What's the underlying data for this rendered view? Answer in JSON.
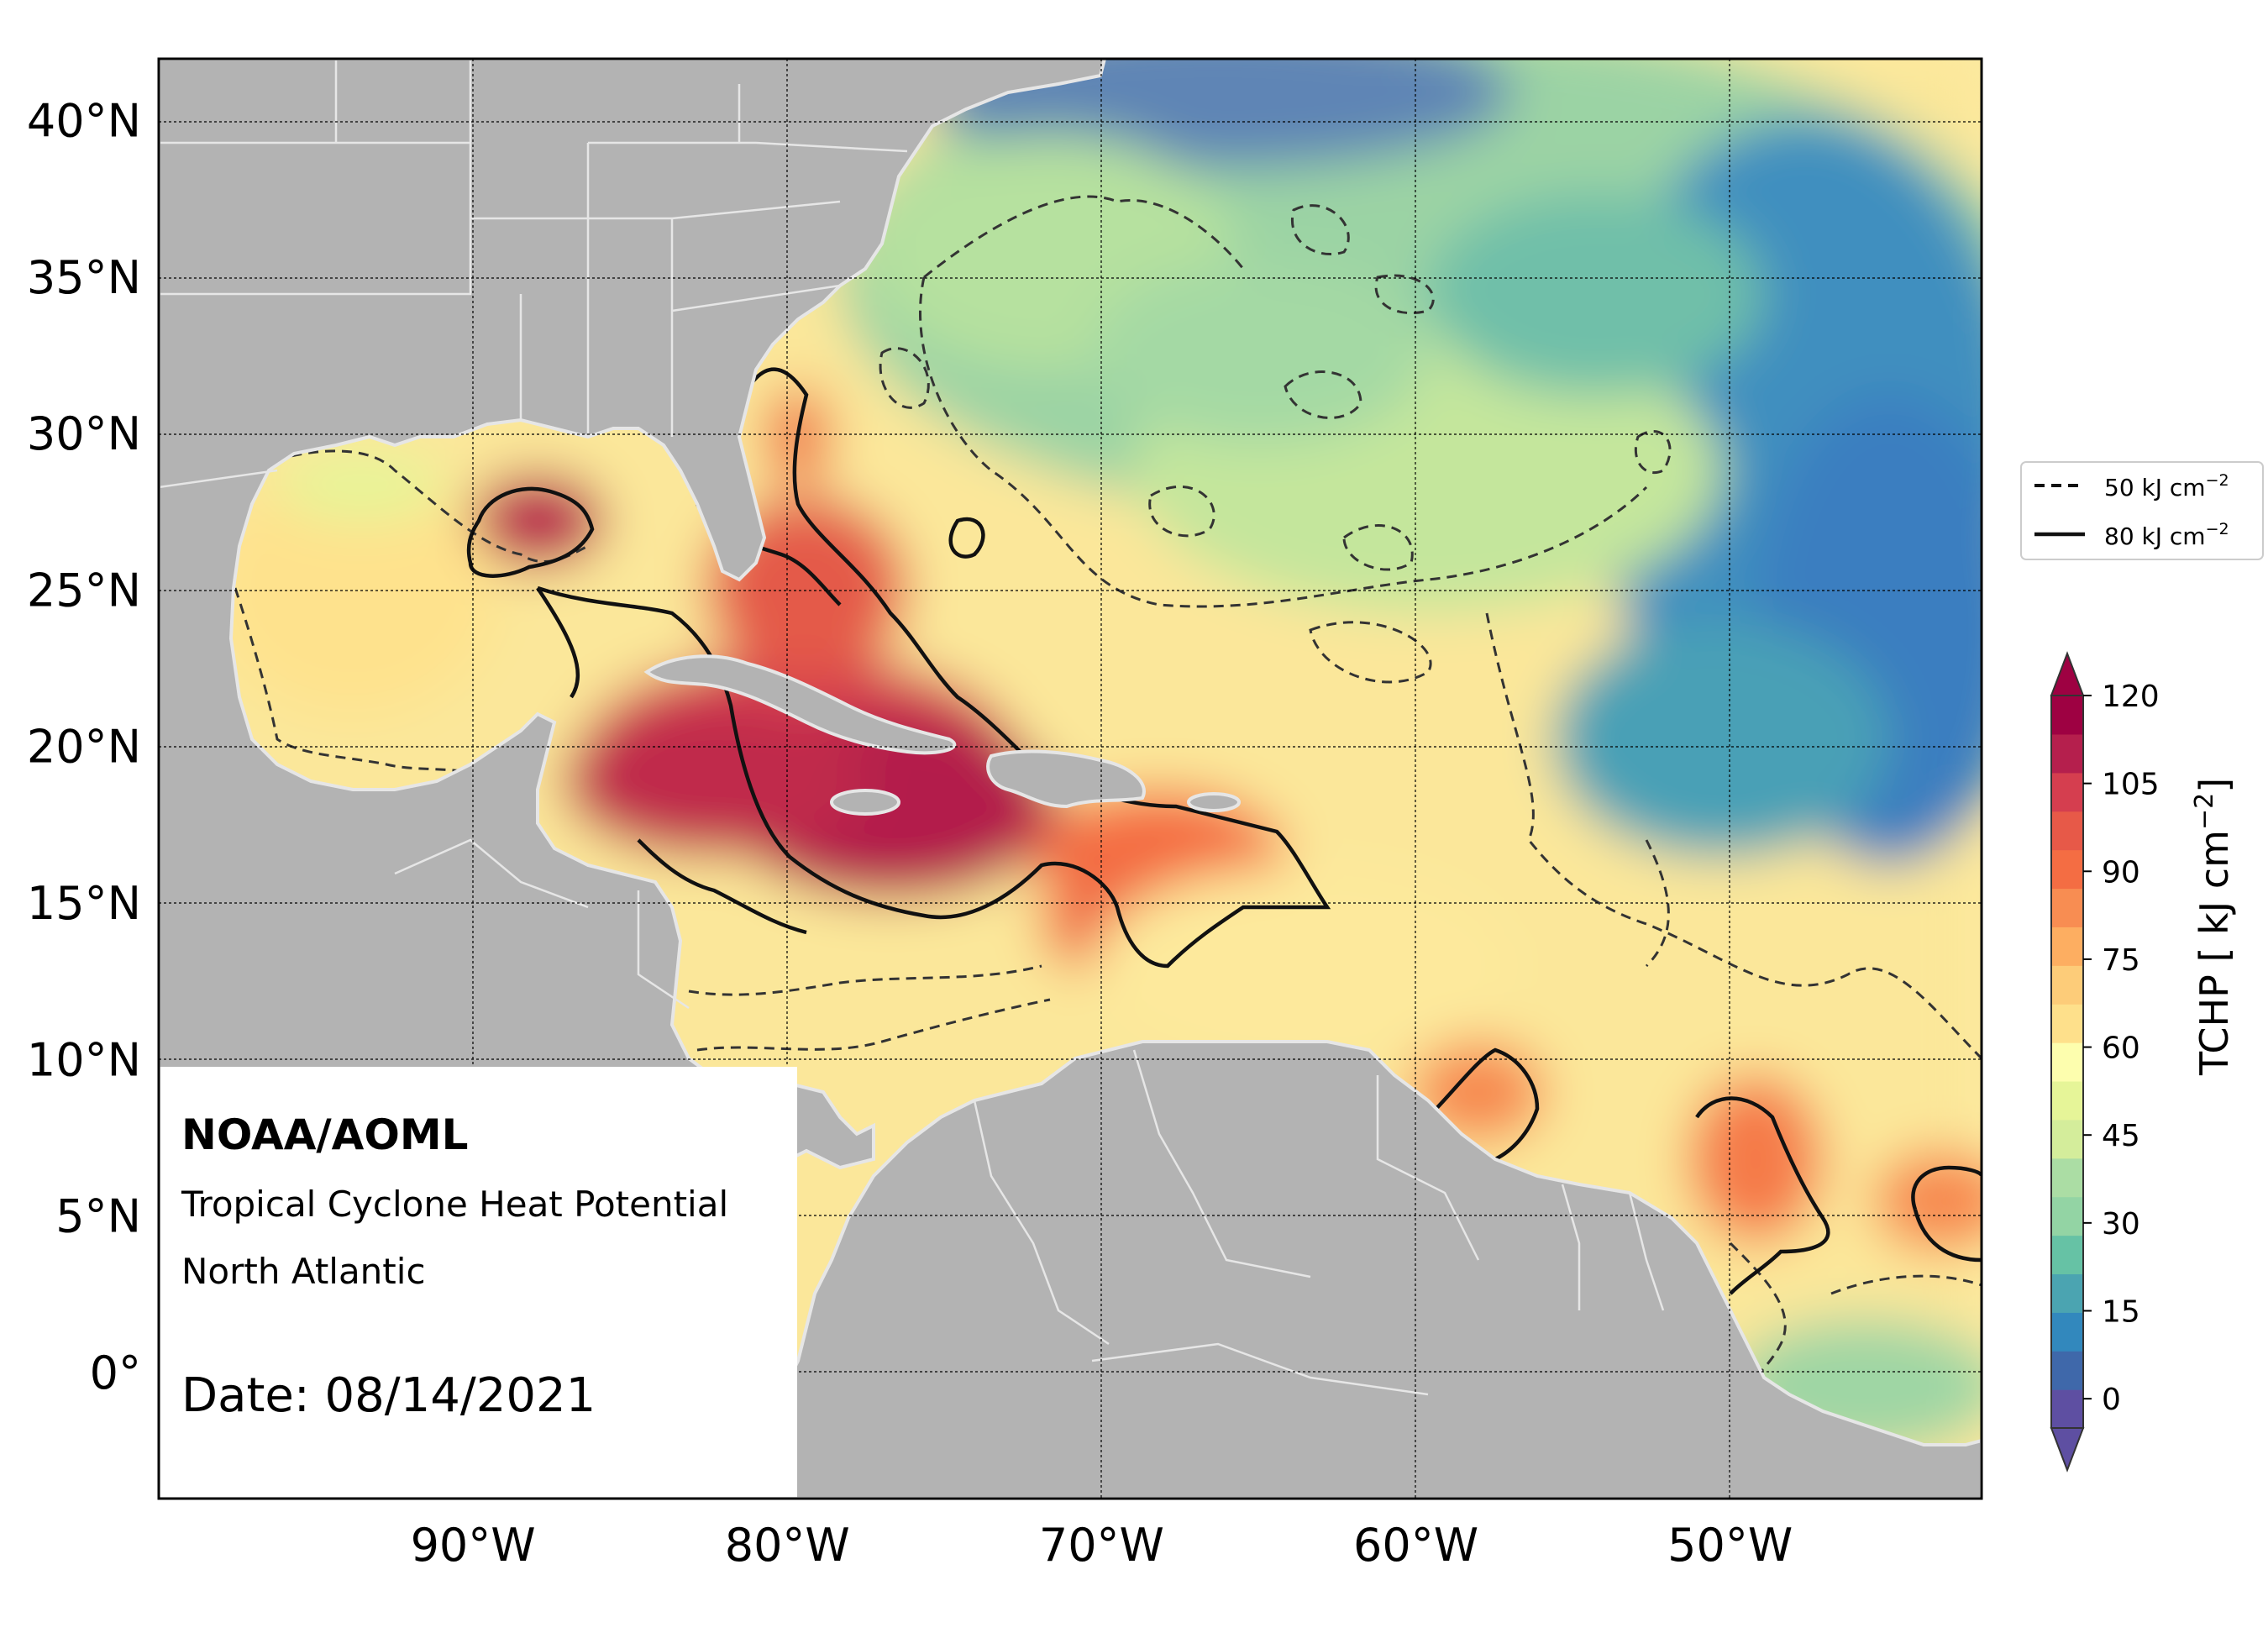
{
  "map": {
    "projection": "equirectangular",
    "lon_range": [
      -100,
      -42
    ],
    "lat_range": [
      -4,
      42
    ],
    "lat_ticks": [
      {
        "value": 40,
        "label": "40°N"
      },
      {
        "value": 35,
        "label": "35°N"
      },
      {
        "value": 30,
        "label": "30°N"
      },
      {
        "value": 25,
        "label": "25°N"
      },
      {
        "value": 20,
        "label": "20°N"
      },
      {
        "value": 15,
        "label": "15°N"
      },
      {
        "value": 10,
        "label": "10°N"
      },
      {
        "value": 5,
        "label": "5°N"
      },
      {
        "value": 0,
        "label": "0°"
      }
    ],
    "lon_ticks": [
      {
        "value": -90,
        "label": "90°W"
      },
      {
        "value": -80,
        "label": "80°W"
      },
      {
        "value": -70,
        "label": "70°W"
      },
      {
        "value": -60,
        "label": "60°W"
      },
      {
        "value": -50,
        "label": "50°W"
      }
    ],
    "gridlines": true,
    "land_color": "#b3b3b3",
    "coast_color": "#e6e6e6"
  },
  "info_box": {
    "org": "NOAA/AOML",
    "product": "Tropical Cyclone Heat Potential",
    "region": "North Atlantic",
    "date": "Date: 08/14/2021"
  },
  "legend": {
    "placement": "right",
    "items": [
      {
        "style": "dashed",
        "label": "50 kJ cm",
        "sup": "−2"
      },
      {
        "style": "solid",
        "label": "80 kJ cm",
        "sup": "−2"
      }
    ]
  },
  "colorbar": {
    "label": "TCHP [ kJ cm",
    "label_sup": "−2",
    "label_end": "]",
    "ticks": [
      "120",
      "105",
      "90",
      "75",
      "60",
      "45",
      "30",
      "15",
      "0"
    ],
    "range": [
      -5,
      120
    ],
    "colors": [
      "#5e4fa2",
      "#3f68aa",
      "#3288bd",
      "#4ba4b1",
      "#66c2a5",
      "#93d4a4",
      "#abdda4",
      "#d4ed9b",
      "#e6f598",
      "#fdfeae",
      "#fee08b",
      "#fdcc79",
      "#fdae61",
      "#f88d52",
      "#f46d43",
      "#e75948",
      "#d53e4f",
      "#b51f4d",
      "#9e0142"
    ]
  },
  "contours": {
    "levels_kj_cm2": [
      50,
      80
    ]
  }
}
